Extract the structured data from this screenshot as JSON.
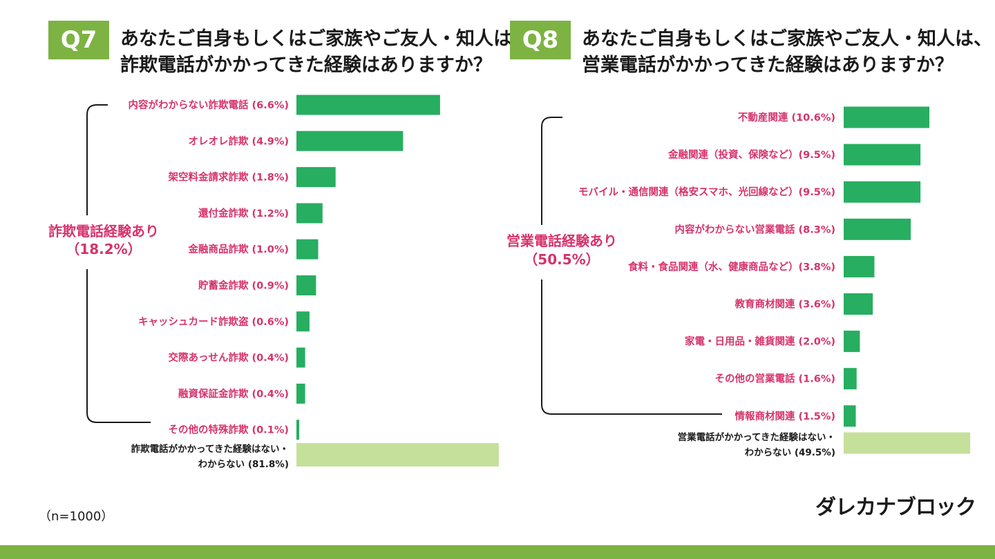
{
  "colors": {
    "accent": "#7cb342",
    "bar": "#27ae60",
    "bar_light": "#c5e09a",
    "pink": "#d6336c",
    "text": "#1a1a1a"
  },
  "q7": {
    "badge": "Q7",
    "title_line1": "あなたご自身もしくはご家族やご友人・知人は、",
    "title_line2": "詐欺電話がかかってきた経験はありますか？"
  },
  "q8": {
    "badge": "Q8",
    "title_line1": "あなたご自身もしくはご家族やご友人・知人は、",
    "title_line2": "営業電話がかかってきた経験はありますか？"
  },
  "footer": {
    "n_label": "（n=1000）",
    "logo_text": "ダレカナブロック",
    "logo_icon": "shield-phone-icon"
  },
  "chart_data": [
    {
      "type": "bar",
      "orientation": "horizontal",
      "title": "詐欺電話がかかってきた経験はありますか？",
      "group_label_line1": "詐欺電話経験あり",
      "group_label_line2": "（18.2%）",
      "categories": [
        "内容がわからない詐欺電話 (6.6%)",
        "オレオレ詐欺 (4.9%)",
        "架空料金請求詐欺 (1.8%)",
        "還付金詐欺 (1.2%)",
        "金融商品詐欺 (1.0%)",
        "貯蓄金詐欺 (0.9%)",
        "キャッシュカード詐欺盗 (0.6%)",
        "交際あっせん詐欺 (0.4%)",
        "融資保証金詐欺 (0.4%)",
        "その他の特殊詐欺 (0.1%)"
      ],
      "values": [
        6.6,
        4.9,
        1.8,
        1.2,
        1.0,
        0.9,
        0.6,
        0.4,
        0.4,
        0.1
      ],
      "none_label_line1": "詐欺電話がかかってきた経験はない・",
      "none_label_line2": "わからない (81.8%)",
      "none_value": 81.8
    },
    {
      "type": "bar",
      "orientation": "horizontal",
      "title": "営業電話がかかってきた経験はありますか？",
      "group_label_line1": "営業電話経験あり",
      "group_label_line2": "（50.5%）",
      "categories": [
        "不動産関連 (10.6%)",
        "金融関連（投資、保険など）(9.5%)",
        "モバイル・通信関連（格安スマホ、光回線など）(9.5%)",
        "内容がわからない営業電話 (8.3%)",
        "食料・食品関連（水、健康商品など）(3.8%)",
        "教育商材関連 (3.6%)",
        "家電・日用品・雑貨関連 (2.0%)",
        "その他の営業電話 (1.6%)",
        "情報商材関連 (1.5%)"
      ],
      "values": [
        10.6,
        9.5,
        9.5,
        8.3,
        3.8,
        3.6,
        2.0,
        1.6,
        1.5
      ],
      "none_label_line1": "営業電話がかかってきた経験はない・",
      "none_label_line2": "わからない (49.5%)",
      "none_value": 49.5
    }
  ]
}
